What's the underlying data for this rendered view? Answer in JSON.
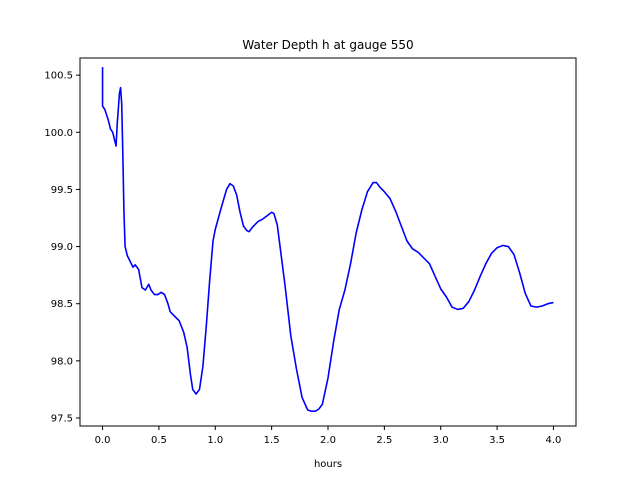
{
  "chart_data": {
    "type": "line",
    "title": "Water Depth h at gauge 550",
    "xlabel": "hours",
    "ylabel": "",
    "xlim": [
      -0.2,
      4.2
    ],
    "ylim": [
      97.43,
      100.65
    ],
    "xticks": [
      0.0,
      0.5,
      1.0,
      1.5,
      2.0,
      2.5,
      3.0,
      3.5,
      4.0
    ],
    "xtick_labels": [
      "0.0",
      "0.5",
      "1.0",
      "1.5",
      "2.0",
      "2.5",
      "3.0",
      "3.5",
      "4.0"
    ],
    "yticks": [
      97.5,
      98.0,
      98.5,
      99.0,
      99.5,
      100.0,
      100.5
    ],
    "ytick_labels": [
      "97.5",
      "98.0",
      "98.5",
      "99.0",
      "99.5",
      "100.0",
      "100.5"
    ],
    "grid": false,
    "series": [
      {
        "color": "#0000ff",
        "x": [
          0.0,
          0.0,
          0.02,
          0.05,
          0.07,
          0.09,
          0.11,
          0.12,
          0.13,
          0.15,
          0.16,
          0.17,
          0.18,
          0.19,
          0.2,
          0.22,
          0.24,
          0.27,
          0.29,
          0.32,
          0.35,
          0.38,
          0.41,
          0.43,
          0.46,
          0.49,
          0.52,
          0.55,
          0.58,
          0.6,
          0.63,
          0.68,
          0.72,
          0.75,
          0.78,
          0.8,
          0.83,
          0.86,
          0.89,
          0.92,
          0.95,
          0.98,
          1.0,
          1.05,
          1.1,
          1.13,
          1.16,
          1.19,
          1.22,
          1.25,
          1.28,
          1.3,
          1.33,
          1.38,
          1.42,
          1.46,
          1.5,
          1.52,
          1.55,
          1.58,
          1.62,
          1.67,
          1.72,
          1.77,
          1.82,
          1.85,
          1.89,
          1.92,
          1.95,
          2.0,
          2.05,
          2.1,
          2.15,
          2.2,
          2.25,
          2.3,
          2.35,
          2.4,
          2.43,
          2.46,
          2.5,
          2.55,
          2.6,
          2.65,
          2.7,
          2.75,
          2.8,
          2.85,
          2.9,
          2.95,
          3.0,
          3.05,
          3.1,
          3.15,
          3.2,
          3.25,
          3.3,
          3.35,
          3.4,
          3.45,
          3.5,
          3.55,
          3.6,
          3.65,
          3.7,
          3.75,
          3.8,
          3.85,
          3.9,
          3.95,
          4.0
        ],
        "y": [
          100.57,
          100.23,
          100.2,
          100.11,
          100.03,
          100.0,
          99.92,
          99.88,
          100.07,
          100.34,
          100.39,
          100.25,
          99.8,
          99.3,
          99.0,
          98.92,
          98.88,
          98.82,
          98.84,
          98.8,
          98.64,
          98.62,
          98.67,
          98.62,
          98.58,
          98.58,
          98.6,
          98.58,
          98.5,
          98.43,
          98.4,
          98.35,
          98.25,
          98.12,
          97.88,
          97.75,
          97.71,
          97.75,
          97.95,
          98.3,
          98.7,
          99.05,
          99.15,
          99.33,
          99.5,
          99.55,
          99.53,
          99.45,
          99.3,
          99.18,
          99.14,
          99.13,
          99.17,
          99.22,
          99.24,
          99.27,
          99.3,
          99.29,
          99.19,
          98.96,
          98.65,
          98.22,
          97.93,
          97.68,
          97.57,
          97.56,
          97.56,
          97.58,
          97.62,
          97.85,
          98.17,
          98.45,
          98.62,
          98.85,
          99.12,
          99.32,
          99.48,
          99.56,
          99.56,
          99.52,
          99.48,
          99.42,
          99.31,
          99.18,
          99.05,
          98.98,
          98.95,
          98.9,
          98.85,
          98.74,
          98.63,
          98.56,
          98.47,
          98.45,
          98.46,
          98.52,
          98.62,
          98.74,
          98.85,
          98.94,
          98.99,
          99.01,
          99.0,
          98.93,
          98.77,
          98.59,
          98.48,
          98.47,
          98.48,
          98.5,
          98.51
        ]
      }
    ]
  }
}
